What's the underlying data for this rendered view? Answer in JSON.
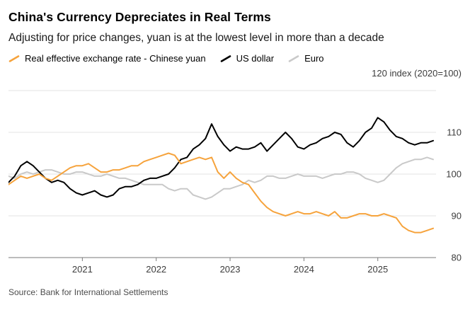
{
  "header": {
    "title": "China's Currency Depreciates in Real Terms",
    "subtitle": "Adjusting for price changes, yuan is at the lowest level in more than a decade"
  },
  "legend": [
    {
      "label": "Real effective exchange rate - Chinese yuan",
      "color": "#F6A33C"
    },
    {
      "label": "US dollar",
      "color": "#000000"
    },
    {
      "label": "Euro",
      "color": "#C9C9C9"
    }
  ],
  "axis_note": "120 index (2020=100)",
  "source": "Source: Bank for International Settlements",
  "colors": {
    "grid": "#E3E3E3",
    "axis": "#7a7a7a",
    "tick_text": "#3c3c3c"
  },
  "chart_data": {
    "type": "line",
    "title": "China's Currency Depreciates in Real Terms",
    "subtitle": "Adjusting for price changes, yuan is at the lowest level in more than a decade",
    "x_unit": "month",
    "x_start": "2020-01",
    "x_end": "2025-10",
    "x_tick_labels": [
      "2021",
      "2022",
      "2023",
      "2024",
      "2025"
    ],
    "x_ticks": [
      {
        "label": "2021",
        "month_index": 12
      },
      {
        "label": "2022",
        "month_index": 24
      },
      {
        "label": "2023",
        "month_index": 36
      },
      {
        "label": "2024",
        "month_index": 48
      },
      {
        "label": "2025",
        "month_index": 60
      }
    ],
    "ylabel": "index (2020=100)",
    "ylim": [
      80,
      120
    ],
    "y_ticks": [
      80,
      90,
      100,
      110,
      120
    ],
    "grid": true,
    "legend_position": "top",
    "series": [
      {
        "name": "Real effective exchange rate - Chinese yuan",
        "short": "chinese-yuan",
        "color": "#F6A33C",
        "values": [
          97.5,
          98.5,
          99.5,
          99.0,
          99.5,
          100.0,
          99.0,
          98.5,
          99.5,
          100.5,
          101.5,
          102.0,
          102.0,
          102.5,
          101.5,
          100.5,
          100.5,
          101.0,
          101.0,
          101.5,
          102.0,
          102.0,
          103.0,
          103.5,
          104.0,
          104.5,
          105.0,
          104.5,
          102.5,
          103.0,
          103.5,
          104.0,
          103.5,
          104.0,
          100.5,
          99.0,
          100.5,
          99.0,
          98.0,
          97.5,
          95.5,
          93.5,
          92.0,
          91.0,
          90.5,
          90.0,
          90.5,
          91.0,
          90.5,
          90.5,
          91.0,
          90.5,
          90.0,
          91.0,
          89.5,
          89.5,
          90.0,
          90.5,
          90.5,
          90.0,
          90.0,
          90.5,
          90.0,
          89.5,
          87.5,
          86.5,
          86.0,
          86.0,
          86.5,
          87.0
        ]
      },
      {
        "name": "US dollar",
        "short": "us-dollar",
        "color": "#000000",
        "values": [
          98.0,
          99.5,
          102.0,
          103.0,
          102.0,
          100.5,
          99.0,
          98.0,
          98.5,
          98.0,
          96.5,
          95.5,
          95.0,
          95.5,
          96.0,
          95.0,
          94.5,
          95.0,
          96.5,
          97.0,
          97.0,
          97.5,
          98.5,
          99.0,
          99.0,
          99.5,
          100.0,
          101.5,
          103.5,
          104.0,
          106.0,
          107.0,
          108.5,
          112.0,
          109.0,
          107.0,
          105.5,
          106.5,
          106.0,
          106.0,
          106.5,
          107.5,
          105.5,
          107.0,
          108.5,
          110.0,
          108.5,
          106.5,
          106.0,
          107.0,
          107.5,
          108.5,
          109.0,
          110.0,
          109.5,
          107.5,
          106.5,
          108.0,
          110.0,
          111.0,
          113.5,
          112.5,
          110.5,
          109.0,
          108.5,
          107.5,
          107.0,
          107.5,
          107.5,
          108.0
        ]
      },
      {
        "name": "Euro",
        "short": "euro",
        "color": "#C9C9C9",
        "values": [
          99.5,
          99.0,
          100.0,
          100.5,
          100.0,
          100.5,
          101.0,
          101.0,
          100.5,
          100.0,
          100.0,
          100.5,
          100.5,
          100.0,
          99.5,
          99.5,
          100.0,
          99.5,
          99.0,
          99.0,
          98.5,
          98.0,
          97.5,
          97.5,
          97.5,
          97.5,
          96.5,
          96.0,
          96.5,
          96.5,
          95.0,
          94.5,
          94.0,
          94.5,
          95.5,
          96.5,
          96.5,
          97.0,
          97.5,
          98.5,
          98.0,
          98.5,
          99.5,
          99.5,
          99.0,
          99.0,
          99.5,
          100.0,
          99.5,
          99.5,
          99.5,
          99.0,
          99.5,
          100.0,
          100.0,
          100.5,
          100.5,
          100.0,
          99.0,
          98.5,
          98.0,
          98.5,
          100.0,
          101.5,
          102.5,
          103.0,
          103.5,
          103.5,
          104.0,
          103.5
        ]
      }
    ]
  }
}
